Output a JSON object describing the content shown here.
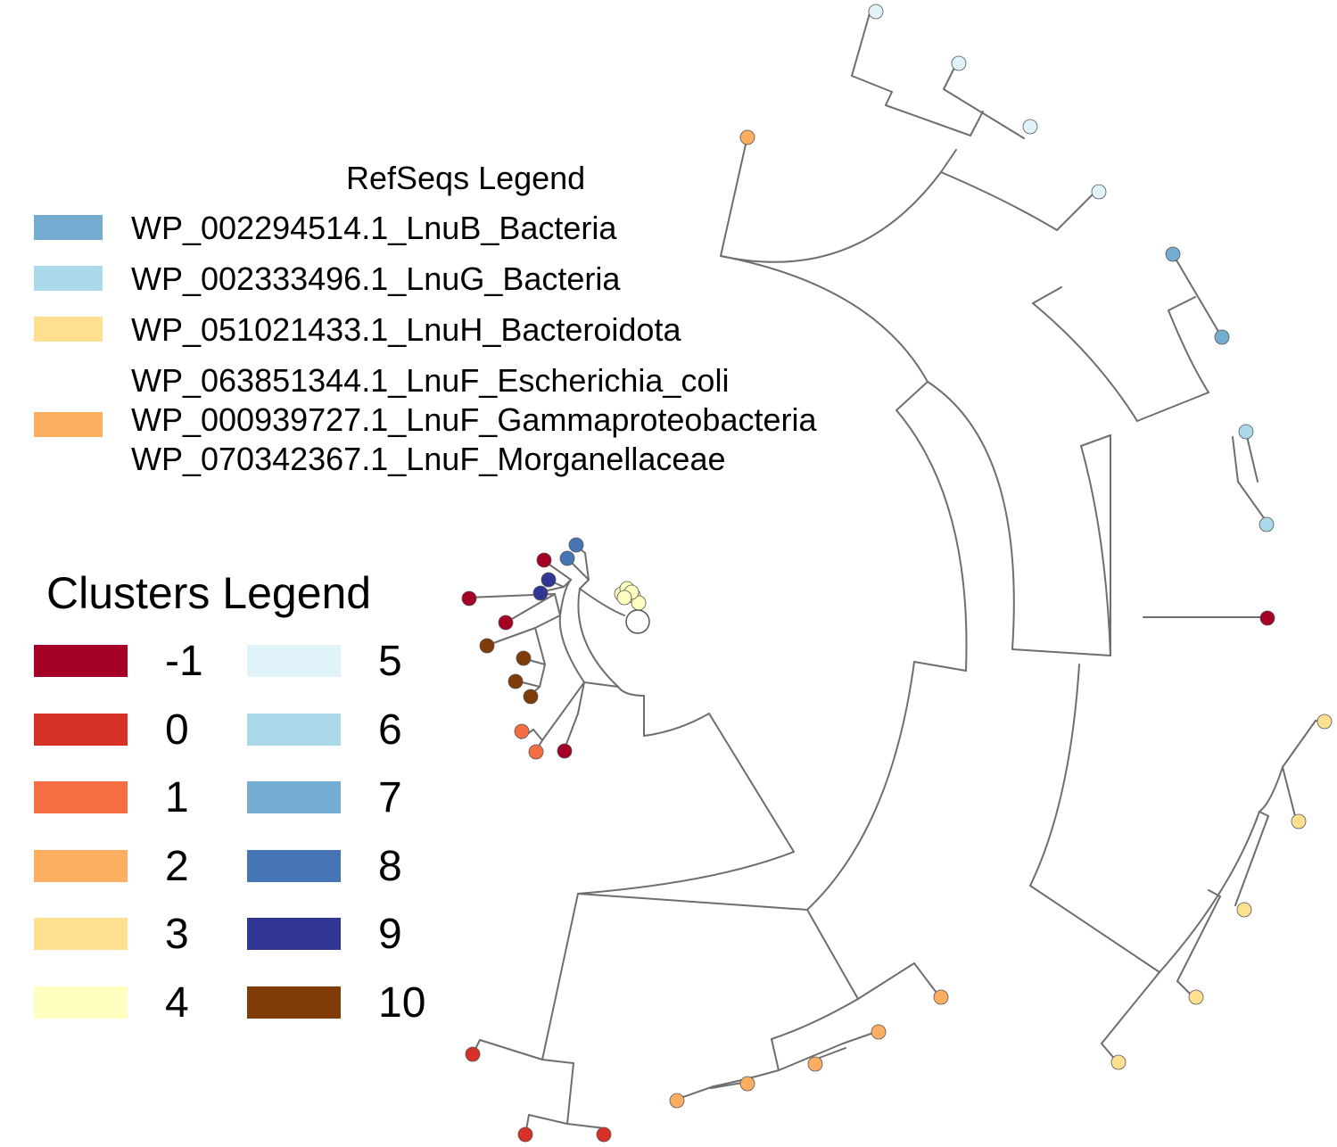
{
  "refseq_legend": {
    "title": "RefSeqs Legend",
    "entries": [
      {
        "color": "#74add1",
        "labels": [
          "WP_002294514.1_LnuB_Bacteria"
        ]
      },
      {
        "color": "#abd9e9",
        "labels": [
          "WP_002333496.1_LnuG_Bacteria"
        ]
      },
      {
        "color": "#fee090",
        "labels": [
          "WP_051021433.1_LnuH_Bacteroidota"
        ]
      },
      {
        "color": "#fdae61",
        "labels": [
          "WP_063851344.1_LnuF_Escherichia_coli",
          "WP_000939727.1_LnuF_Gammaproteobacteria",
          "WP_070342367.1_LnuF_Morganellaceae"
        ]
      }
    ]
  },
  "clusters_legend": {
    "title": "Clusters Legend",
    "entries": [
      {
        "label": "-1",
        "color": "#a50026"
      },
      {
        "label": "0",
        "color": "#d73027"
      },
      {
        "label": "1",
        "color": "#f46d43"
      },
      {
        "label": "2",
        "color": "#fdae61"
      },
      {
        "label": "3",
        "color": "#fee090"
      },
      {
        "label": "4",
        "color": "#ffffbf"
      },
      {
        "label": "5",
        "color": "#e0f3f8"
      },
      {
        "label": "6",
        "color": "#abd9e9"
      },
      {
        "label": "7",
        "color": "#74add1"
      },
      {
        "label": "8",
        "color": "#4575b4"
      },
      {
        "label": "9",
        "color": "#313695"
      },
      {
        "label": "10",
        "color": "#7f3b08"
      }
    ]
  },
  "tree": {
    "style": "circular",
    "branch_color": "#6e6e6e",
    "tip_clusters": [
      5,
      5,
      5,
      5,
      2,
      7,
      7,
      6,
      6,
      -1,
      3,
      3,
      3,
      3,
      3,
      2,
      2,
      2,
      2,
      2,
      0,
      0,
      0,
      -1,
      1,
      1,
      10,
      10,
      10,
      10,
      -1,
      -1,
      9,
      9,
      -1,
      8,
      8,
      4,
      4,
      4,
      4,
      4,
      4
    ]
  }
}
